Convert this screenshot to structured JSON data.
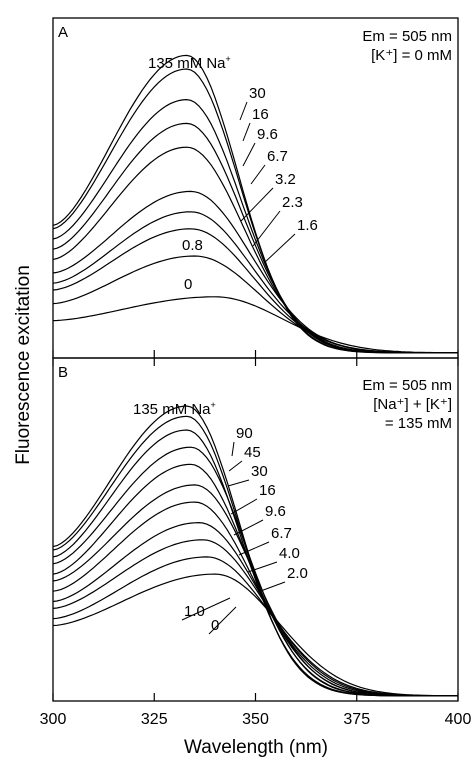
{
  "figure": {
    "ylabel": "Fluorescence excitation",
    "xlabel": "Wavelength (nm)",
    "xlim": [
      300,
      400
    ],
    "xticks": [
      300,
      325,
      350,
      375,
      400
    ]
  },
  "chart_data": [
    {
      "panel": "A",
      "type": "line",
      "xlim": [
        300,
        400
      ],
      "ylim": [
        0,
        1
      ],
      "annotation_lines": [
        "Em = 505 nm",
        "[K⁺] = 0 mM"
      ],
      "series_prefix": "135 mM Na",
      "series_prefix_sup": "+",
      "series": [
        {
          "name": "135",
          "label": "",
          "peak_x": 333,
          "peak": 0.89,
          "start": 0.39
        },
        {
          "name": "30",
          "label": "30",
          "peak_x": 333,
          "peak": 0.85,
          "start": 0.38
        },
        {
          "name": "16",
          "label": "16",
          "peak_x": 333,
          "peak": 0.76,
          "start": 0.35
        },
        {
          "name": "9.6",
          "label": "9.6",
          "peak_x": 333,
          "peak": 0.69,
          "start": 0.32
        },
        {
          "name": "6.7",
          "label": "6.7",
          "peak_x": 333,
          "peak": 0.62,
          "start": 0.29
        },
        {
          "name": "3.2",
          "label": "3.2",
          "peak_x": 334,
          "peak": 0.49,
          "start": 0.25
        },
        {
          "name": "2.3",
          "label": "2.3",
          "peak_x": 334,
          "peak": 0.43,
          "start": 0.22
        },
        {
          "name": "1.6",
          "label": "1.6",
          "peak_x": 334,
          "peak": 0.38,
          "start": 0.2
        },
        {
          "name": "0.8",
          "label": "0.8",
          "peak_x": 335,
          "peak": 0.3,
          "start": 0.16
        },
        {
          "name": "0",
          "label": "0",
          "peak_x": 340,
          "peak": 0.18,
          "start": 0.11
        }
      ]
    },
    {
      "panel": "B",
      "type": "line",
      "xlim": [
        300,
        400
      ],
      "ylim": [
        0,
        1
      ],
      "annotation_lines": [
        "Em = 505 nm",
        "[Na⁺] + [K⁺]",
        "= 135 mM"
      ],
      "series_prefix": "135 mM Na",
      "series_prefix_sup": "+",
      "series": [
        {
          "name": "135",
          "label": "",
          "peak_x": 333,
          "peak": 0.86,
          "start": 0.45
        },
        {
          "name": "90",
          "label": "90",
          "peak_x": 333,
          "peak": 0.83,
          "start": 0.44
        },
        {
          "name": "45",
          "label": "45",
          "peak_x": 333,
          "peak": 0.79,
          "start": 0.42
        },
        {
          "name": "30",
          "label": "30",
          "peak_x": 334,
          "peak": 0.74,
          "start": 0.4
        },
        {
          "name": "16",
          "label": "16",
          "peak_x": 334,
          "peak": 0.69,
          "start": 0.37
        },
        {
          "name": "9.6",
          "label": "9.6",
          "peak_x": 335,
          "peak": 0.63,
          "start": 0.35
        },
        {
          "name": "6.7",
          "label": "6.7",
          "peak_x": 335,
          "peak": 0.58,
          "start": 0.32
        },
        {
          "name": "4.0",
          "label": "4.0",
          "peak_x": 336,
          "peak": 0.52,
          "start": 0.29
        },
        {
          "name": "2.0",
          "label": "2.0",
          "peak_x": 337,
          "peak": 0.47,
          "start": 0.27
        },
        {
          "name": "1.0",
          "label": "1.0",
          "peak_x": 338,
          "peak": 0.42,
          "start": 0.24
        },
        {
          "name": "0",
          "label": "0",
          "peak_x": 340,
          "peak": 0.37,
          "start": 0.22
        }
      ]
    }
  ]
}
